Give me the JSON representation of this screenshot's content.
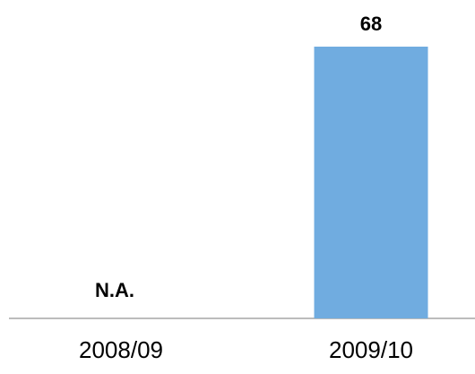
{
  "chart_data": {
    "type": "bar",
    "categories": [
      "2008/09",
      "2009/10"
    ],
    "values": [
      null,
      68
    ],
    "value_labels": [
      "N.A.",
      "68"
    ],
    "color": "#70ace0"
  }
}
